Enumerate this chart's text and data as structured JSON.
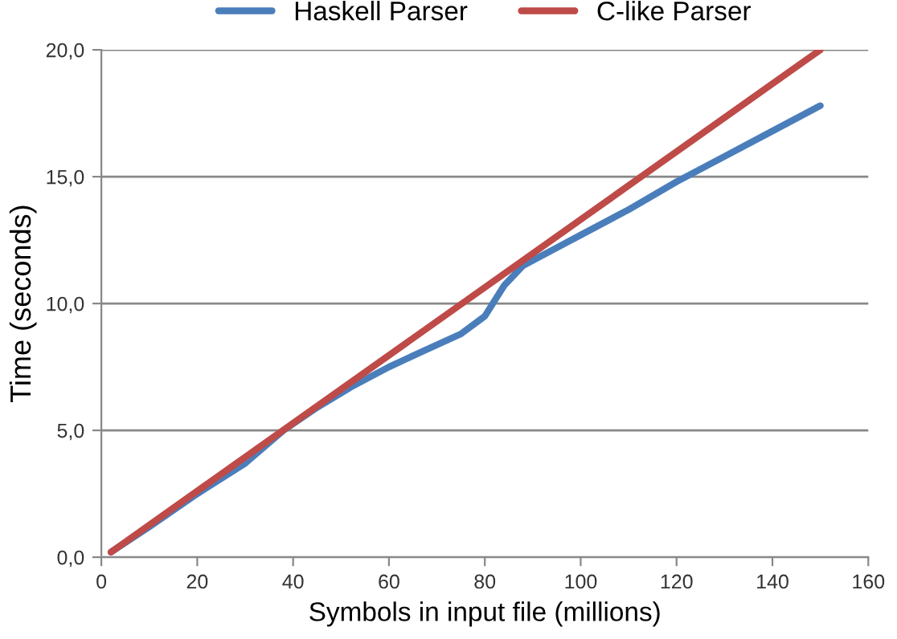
{
  "chart_data": {
    "type": "line",
    "xlabel": "Symbols in input file (millions)",
    "ylabel": "Time (seconds)",
    "series": [
      {
        "name": "Haskell Parser",
        "color": "#4a7ebb",
        "x": [
          2,
          10,
          20,
          30,
          38,
          45,
          52,
          60,
          68,
          75,
          80,
          84,
          88,
          95,
          100,
          110,
          120,
          130,
          140,
          150
        ],
        "values": [
          0.2,
          1.2,
          2.5,
          3.7,
          5.0,
          5.9,
          6.7,
          7.5,
          8.2,
          8.8,
          9.5,
          10.7,
          11.5,
          12.2,
          12.7,
          13.7,
          14.8,
          15.8,
          16.8,
          17.8
        ]
      },
      {
        "name": "C-like Parser",
        "color": "#be4b48",
        "x": [
          2,
          150
        ],
        "values": [
          0.2,
          20.0
        ]
      }
    ],
    "xlim": [
      0,
      160
    ],
    "xticks": [
      0,
      20,
      40,
      60,
      80,
      100,
      120,
      140,
      160
    ],
    "ylim": [
      0,
      20
    ],
    "yticks": [
      {
        "value": 0,
        "label": "0,0"
      },
      {
        "value": 5,
        "label": "5,0"
      },
      {
        "value": 10,
        "label": "10,0"
      },
      {
        "value": 15,
        "label": "15,0"
      },
      {
        "value": 20,
        "label": "20,0"
      }
    ],
    "grid": "y",
    "legend": "top",
    "marker": "none",
    "line_style": "solid"
  }
}
